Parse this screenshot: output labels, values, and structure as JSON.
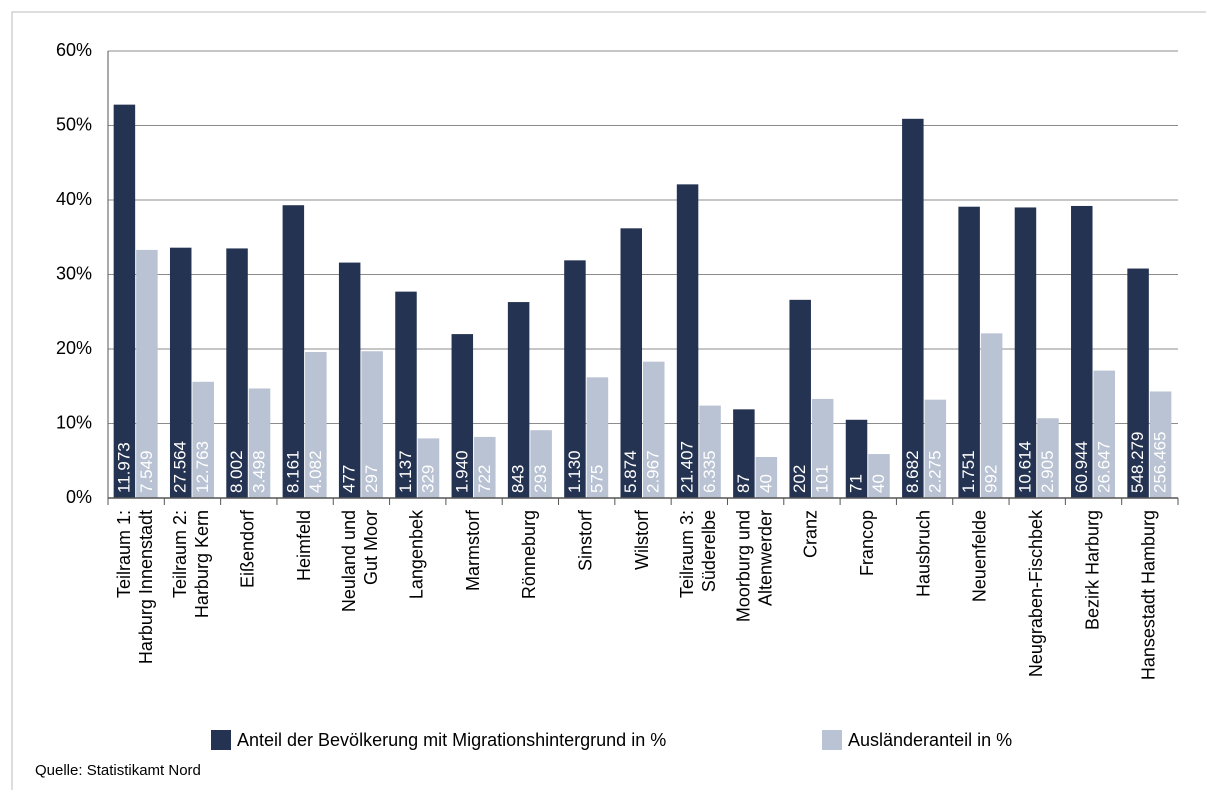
{
  "chart_data": {
    "type": "bar",
    "categories": [
      [
        "Teilraum 1:",
        "Harburg Innenstadt"
      ],
      [
        "Teilraum 2:",
        "Harburg Kern"
      ],
      [
        "Eißendorf"
      ],
      [
        "Heimfeld"
      ],
      [
        "Neuland und",
        "Gut Moor"
      ],
      [
        "Langenbek"
      ],
      [
        "Marmstorf"
      ],
      [
        "Rönneburg"
      ],
      [
        "Sinstorf"
      ],
      [
        "Wilstorf"
      ],
      [
        "Teilraum 3:",
        "Süderelbe"
      ],
      [
        "Moorburg und",
        "Altenwerder"
      ],
      [
        "Cranz"
      ],
      [
        "Francop"
      ],
      [
        "Hausbruch"
      ],
      [
        "Neuenfelde"
      ],
      [
        "Neugraben-Fischbek"
      ],
      [
        "Bezirk Harburg"
      ],
      [
        "Hansestadt Hamburg"
      ]
    ],
    "series": [
      {
        "name": "Anteil der Bevölkerung mit Migrationshintergrund in %",
        "color": "#253352",
        "values": [
          52.8,
          33.6,
          33.5,
          39.3,
          31.6,
          27.7,
          22.0,
          26.3,
          31.9,
          36.2,
          42.1,
          11.9,
          26.6,
          10.5,
          50.9,
          39.1,
          39.0,
          39.2,
          30.8
        ],
        "bar_labels": [
          "11.973",
          "27.564",
          "8.002",
          "8.161",
          "477",
          "1.137",
          "1.940",
          "843",
          "1.130",
          "5.874",
          "21.407",
          "87",
          "202",
          "71",
          "8.682",
          "1.751",
          "10.614",
          "60.944",
          "548.279"
        ]
      },
      {
        "name": "Ausländeranteil in %",
        "color": "#b9c3d3",
        "values": [
          33.3,
          15.6,
          14.7,
          19.6,
          19.7,
          8.0,
          8.2,
          9.1,
          16.2,
          18.3,
          12.4,
          5.5,
          13.3,
          5.9,
          13.2,
          22.1,
          10.7,
          17.1,
          14.3
        ],
        "bar_labels": [
          "7.549",
          "12.763",
          "3.498",
          "4.082",
          "297",
          "329",
          "722",
          "293",
          "575",
          "2.967",
          "6.335",
          "40",
          "101",
          "40",
          "2.275",
          "992",
          "2.905",
          "26.647",
          "256.465"
        ]
      }
    ],
    "ylim": [
      0,
      60
    ],
    "yticks": [
      {
        "value": 0,
        "label": "0%"
      },
      {
        "value": 10,
        "label": "10%"
      },
      {
        "value": 20,
        "label": "20%"
      },
      {
        "value": 30,
        "label": "30%"
      },
      {
        "value": 40,
        "label": "40%"
      },
      {
        "value": 50,
        "label": "50%"
      },
      {
        "value": 60,
        "label": "60%"
      }
    ],
    "grid": true,
    "legend": "bottom",
    "source": "Quelle: Statistikamt Nord"
  }
}
